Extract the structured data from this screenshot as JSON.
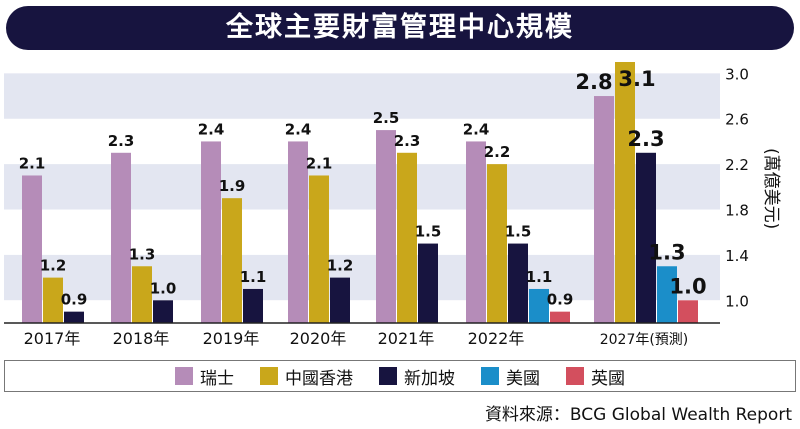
{
  "title": "全球主要財富管理中心規模",
  "source": "資料來源：BCG Global Wealth Report",
  "chart_data": {
    "type": "bar",
    "categories": [
      "2017年",
      "2018年",
      "2019年",
      "2020年",
      "2021年",
      "2022年",
      "2027年(預測)"
    ],
    "ylabel": "(萬億美元)",
    "ylim": [
      0.8,
      3.1
    ],
    "yticks": [
      "3.0",
      "2.6",
      "2.2",
      "1.8",
      "1.4",
      "1.0"
    ],
    "ytick_values": [
      3.0,
      2.6,
      2.2,
      1.8,
      1.4,
      1.0
    ],
    "series": [
      {
        "name": "瑞士",
        "color": "#b58cb8",
        "values": [
          2.1,
          2.3,
          2.4,
          2.4,
          2.5,
          2.4,
          2.8
        ],
        "labels": [
          "2.1",
          "2.3",
          "2.4",
          "2.4",
          "2.5",
          "2.4",
          "2.8"
        ]
      },
      {
        "name": "中國香港",
        "color": "#c9a71b",
        "values": [
          1.2,
          1.3,
          1.9,
          2.1,
          2.3,
          2.2,
          3.1
        ],
        "labels": [
          "1.2",
          "1.3",
          "1.9",
          "2.1",
          "2.3",
          "2.2",
          "3.1"
        ]
      },
      {
        "name": "新加坡",
        "color": "#17143f",
        "values": [
          0.9,
          1.0,
          1.1,
          1.2,
          1.5,
          1.5,
          2.3
        ],
        "labels": [
          "0.9",
          "1.0",
          "1.1",
          "1.2",
          "1.5",
          "1.5",
          "2.3"
        ]
      },
      {
        "name": "美國",
        "color": "#1b8ec9",
        "values": [
          null,
          null,
          null,
          null,
          null,
          1.1,
          1.3
        ],
        "labels": [
          "",
          "",
          "",
          "",
          "",
          "1.1",
          "1.3"
        ]
      },
      {
        "name": "英國",
        "color": "#d34f5e",
        "values": [
          null,
          null,
          null,
          null,
          null,
          0.9,
          1.0
        ],
        "labels": [
          "",
          "",
          "",
          "",
          "",
          "0.9",
          "1.0"
        ]
      }
    ],
    "grid": "alternating horizontal bands",
    "legend": "bottom"
  }
}
